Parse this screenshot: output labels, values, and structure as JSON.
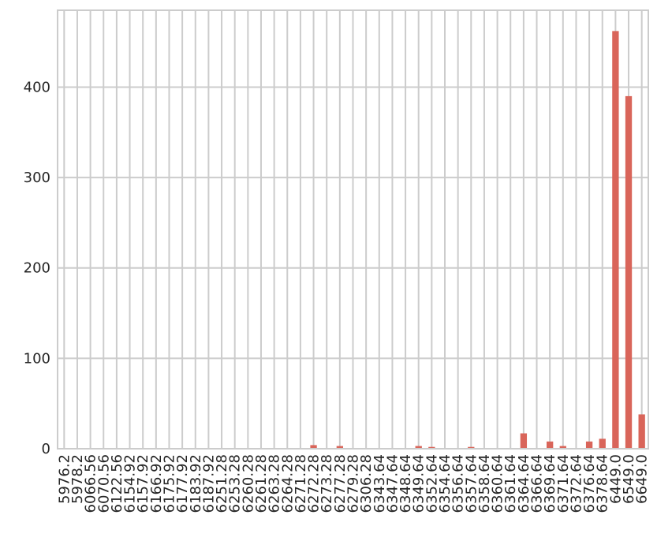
{
  "chart_data": {
    "type": "bar",
    "title": "",
    "xlabel": "",
    "ylabel": "",
    "categories": [
      "5976.2",
      "5978.2",
      "6066.56",
      "6070.56",
      "6122.56",
      "6154.92",
      "6157.92",
      "6166.92",
      "6175.92",
      "6177.92",
      "6183.92",
      "6187.92",
      "6251.28",
      "6253.28",
      "6260.28",
      "6261.28",
      "6263.28",
      "6264.28",
      "6271.28",
      "6272.28",
      "6273.28",
      "6277.28",
      "6279.28",
      "6306.28",
      "6343.64",
      "6347.64",
      "6348.64",
      "6349.64",
      "6352.64",
      "6354.64",
      "6356.64",
      "6357.64",
      "6358.64",
      "6360.64",
      "6361.64",
      "6364.64",
      "6366.64",
      "6369.64",
      "6371.64",
      "6372.64",
      "6376.64",
      "6378.64",
      "6449.0",
      "6549.0",
      "6649.0"
    ],
    "values": [
      0,
      0,
      0,
      0,
      0,
      0,
      0,
      0,
      0,
      0,
      0,
      0,
      0,
      0,
      0,
      0,
      0,
      0,
      0,
      4,
      0,
      3,
      0,
      0,
      0,
      0,
      0,
      3,
      2,
      0,
      0,
      2,
      0,
      0,
      0,
      17,
      0,
      8,
      3,
      0,
      8,
      11,
      462,
      390,
      38
    ],
    "ylim": [
      0,
      485
    ],
    "yticks": [
      0,
      100,
      200,
      300,
      400
    ],
    "grid": true,
    "bar_color": "#d9655a",
    "grid_color": "#cccccc",
    "axis_color": "#cccccc",
    "text_color": "#262626"
  }
}
